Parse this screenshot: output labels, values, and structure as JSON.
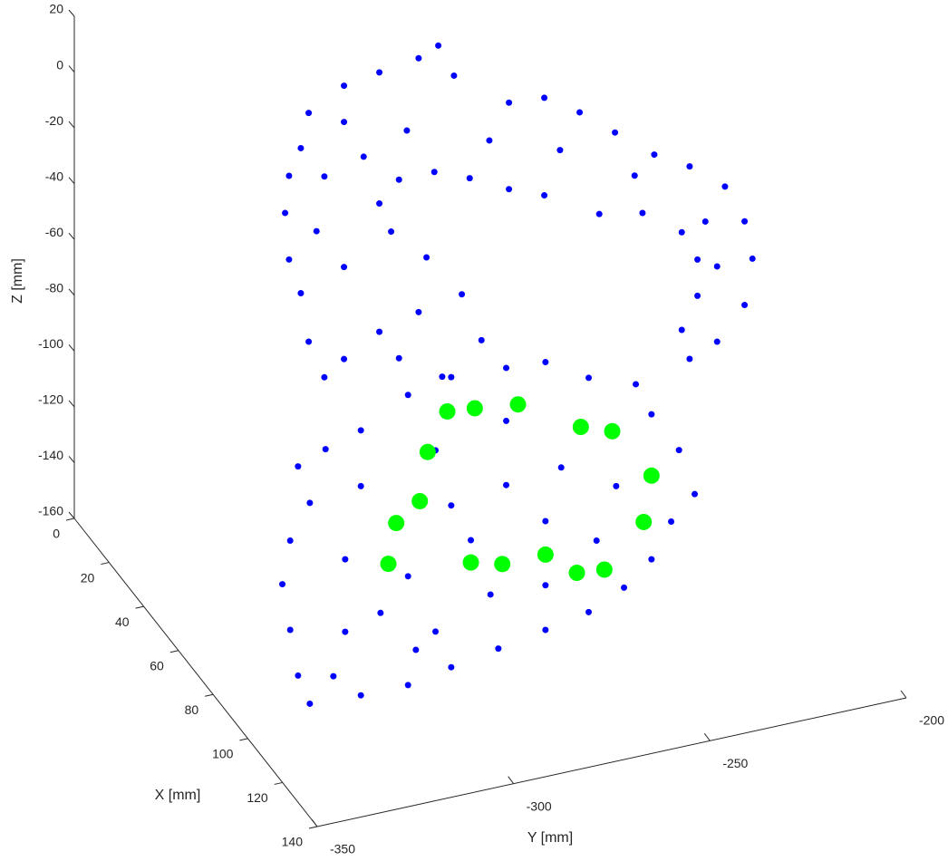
{
  "chart_data": {
    "type": "scatter3d",
    "xlabel": "X [mm]",
    "ylabel": "Y [mm]",
    "zlabel": "Z [mm]",
    "xlim": [
      0,
      140
    ],
    "ylim": [
      -350,
      -200
    ],
    "zlim": [
      -160,
      20
    ],
    "xticks": [
      0,
      20,
      40,
      60,
      80,
      100,
      120,
      140
    ],
    "yticks": [
      -350,
      -300,
      -250,
      -200
    ],
    "zticks": [
      -160,
      -140,
      -120,
      -100,
      -80,
      -60,
      -40,
      -20,
      0,
      20
    ],
    "series": [
      {
        "color": "#0000ff",
        "marker_size": 3.5,
        "x": [
          40,
          40,
          40,
          40,
          40,
          40,
          40,
          40,
          40,
          40,
          40,
          40,
          40,
          40,
          40,
          40,
          40,
          40,
          40,
          40,
          40,
          40,
          40,
          40,
          40,
          40,
          40,
          40,
          40,
          40,
          40,
          40,
          40,
          40,
          40,
          40,
          40,
          40,
          40,
          40,
          40,
          40,
          40,
          40,
          40,
          40,
          40,
          40,
          40,
          40,
          40,
          40,
          40,
          40,
          40,
          40,
          40,
          95,
          95,
          95,
          95,
          95,
          95,
          95,
          95,
          95,
          95,
          95,
          95,
          95,
          95,
          95,
          95,
          95,
          95,
          95,
          95,
          95,
          95,
          95,
          95,
          95,
          95,
          95,
          95,
          95,
          95,
          95,
          95,
          95,
          95,
          95,
          95,
          95,
          95,
          95,
          95,
          95,
          95,
          95,
          95,
          95,
          95,
          95,
          95
        ],
        "y": [
          -310,
          -308,
          -299,
          -290,
          -280,
          -275,
          -271,
          -257,
          -248,
          -239,
          -230,
          -220,
          -211,
          -202,
          -197,
          -195,
          -197,
          -204,
          -211,
          -213,
          -209,
          -209,
          -213,
          -223,
          -234,
          -248,
          -257,
          -267,
          -276,
          -285,
          -290,
          -287,
          -278,
          -269,
          -264,
          -280,
          -290,
          -299,
          -304,
          -308,
          -310,
          -313,
          -314,
          -313,
          -306,
          -299,
          -294,
          -283,
          -262,
          -244,
          -225,
          -207,
          -204,
          -299,
          -304,
          -274,
          -285,
          -335,
          -328,
          -319,
          -307,
          -296,
          -282,
          -272,
          -261,
          -249,
          -245,
          -238,
          -234,
          -240,
          -245,
          -252,
          -261,
          -272,
          -284,
          -296,
          -307,
          -319,
          -332,
          -335,
          -337,
          -339,
          -337,
          -332,
          -323,
          -314,
          -300,
          -286,
          -272,
          -259,
          -254,
          -268,
          -282,
          -296,
          -309,
          -319,
          -300,
          -282,
          -263,
          -323,
          -305,
          -326,
          -291,
          -272,
          -307
        ],
        "z": [
          -8,
          4,
          11,
          13,
          15,
          18,
          6,
          -8,
          -9,
          -17,
          -27,
          -38,
          -45,
          -55,
          -69,
          -83,
          -99,
          -110,
          -114,
          -103,
          -92,
          -79,
          -68,
          -58,
          -55,
          -44,
          -39,
          -32,
          -27,
          -27,
          -34,
          -45,
          -57,
          -73,
          -91,
          -76,
          -80,
          -87,
          -92,
          -78,
          -60,
          -47,
          -30,
          -17,
          -39,
          -54,
          -16,
          -10,
          -20,
          -29,
          -44,
          -66,
          -83,
          -2,
          -20,
          -101,
          -91,
          -71,
          -67,
          -63,
          -54,
          -51,
          -52,
          -53,
          -62,
          -68,
          -80,
          -95,
          -112,
          -120,
          -132,
          -140,
          -146,
          -149,
          -152,
          -155,
          -158,
          -158,
          -157,
          -146,
          -129,
          -112,
          -97,
          -85,
          -108,
          -130,
          -141,
          -132,
          -133,
          -121,
          -103,
          -92,
          -94,
          -97,
          -99,
          -83,
          -76,
          -71,
          -80,
          -134,
          -146,
          -149,
          -111,
          -110,
          -119
        ]
      },
      {
        "color": "#00ff00",
        "marker_size": 9,
        "x": [
          95,
          95,
          95,
          95,
          95,
          95,
          95,
          95,
          95,
          95,
          95,
          95,
          95,
          95,
          95,
          95
        ],
        "y": [
          -297,
          -290,
          -279,
          -263,
          -255,
          -245,
          -247,
          -257,
          -264,
          -272,
          -283,
          -291,
          -312,
          -310,
          -304,
          -302
        ],
        "z": [
          -63,
          -64,
          -66,
          -79,
          -83,
          -102,
          -118,
          -132,
          -131,
          -122,
          -122,
          -119,
          -113,
          -99,
          -93,
          -76
        ]
      }
    ]
  }
}
